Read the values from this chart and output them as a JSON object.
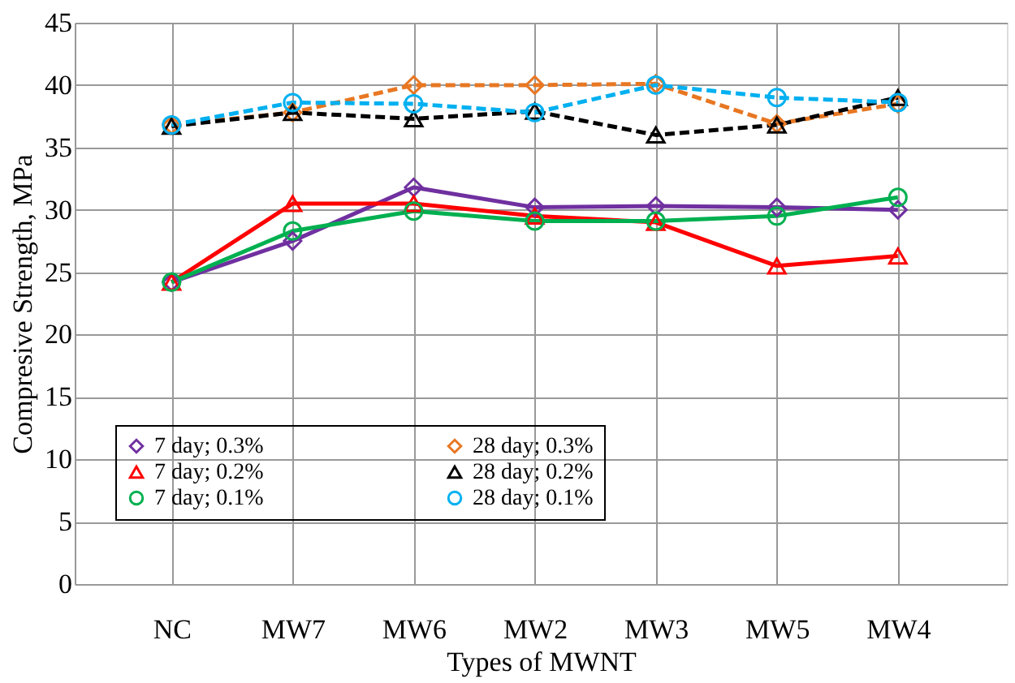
{
  "chart_data": {
    "type": "line",
    "xlabel": "Types of MWNT",
    "ylabel": "Compresive Strength, MPa",
    "categories": [
      "NC",
      "MW7",
      "MW6",
      "MW2",
      "MW3",
      "MW5",
      "MW4"
    ],
    "ylim": [
      0,
      45
    ],
    "yticks": [
      0,
      5,
      10,
      15,
      20,
      25,
      30,
      35,
      40,
      45
    ],
    "grid": true,
    "legend": "bottom",
    "series": [
      {
        "name": "7 day; 0.3%",
        "color": "#7030a0",
        "marker": "diamond",
        "line_style": "solid",
        "values": [
          24.2,
          27.5,
          31.8,
          30.2,
          30.3,
          30.2,
          30.0
        ]
      },
      {
        "name": "28 day; 0.3%",
        "color": "#e87722",
        "marker": "diamond",
        "line_style": "dashed",
        "values": [
          36.8,
          37.8,
          40.0,
          40.0,
          40.1,
          36.9,
          38.5
        ]
      },
      {
        "name": "7 day; 0.2%",
        "color": "#ff0000",
        "marker": "triangle",
        "line_style": "solid",
        "values": [
          24.2,
          30.5,
          30.5,
          29.5,
          29.0,
          25.5,
          26.3
        ]
      },
      {
        "name": "28 day; 0.2%",
        "color": "#000000",
        "marker": "triangle",
        "line_style": "dashed",
        "values": [
          36.7,
          37.8,
          37.3,
          37.9,
          36.0,
          36.8,
          39.0
        ]
      },
      {
        "name": "7 day; 0.1%",
        "color": "#00b050",
        "marker": "circle",
        "line_style": "solid",
        "values": [
          24.2,
          28.3,
          29.9,
          29.1,
          29.1,
          29.5,
          31.0
        ]
      },
      {
        "name": "28 day; 0.1%",
        "color": "#00b0f0",
        "marker": "circle",
        "line_style": "dashed",
        "values": [
          36.8,
          38.6,
          38.5,
          37.8,
          40.0,
          39.0,
          38.6
        ]
      }
    ]
  }
}
